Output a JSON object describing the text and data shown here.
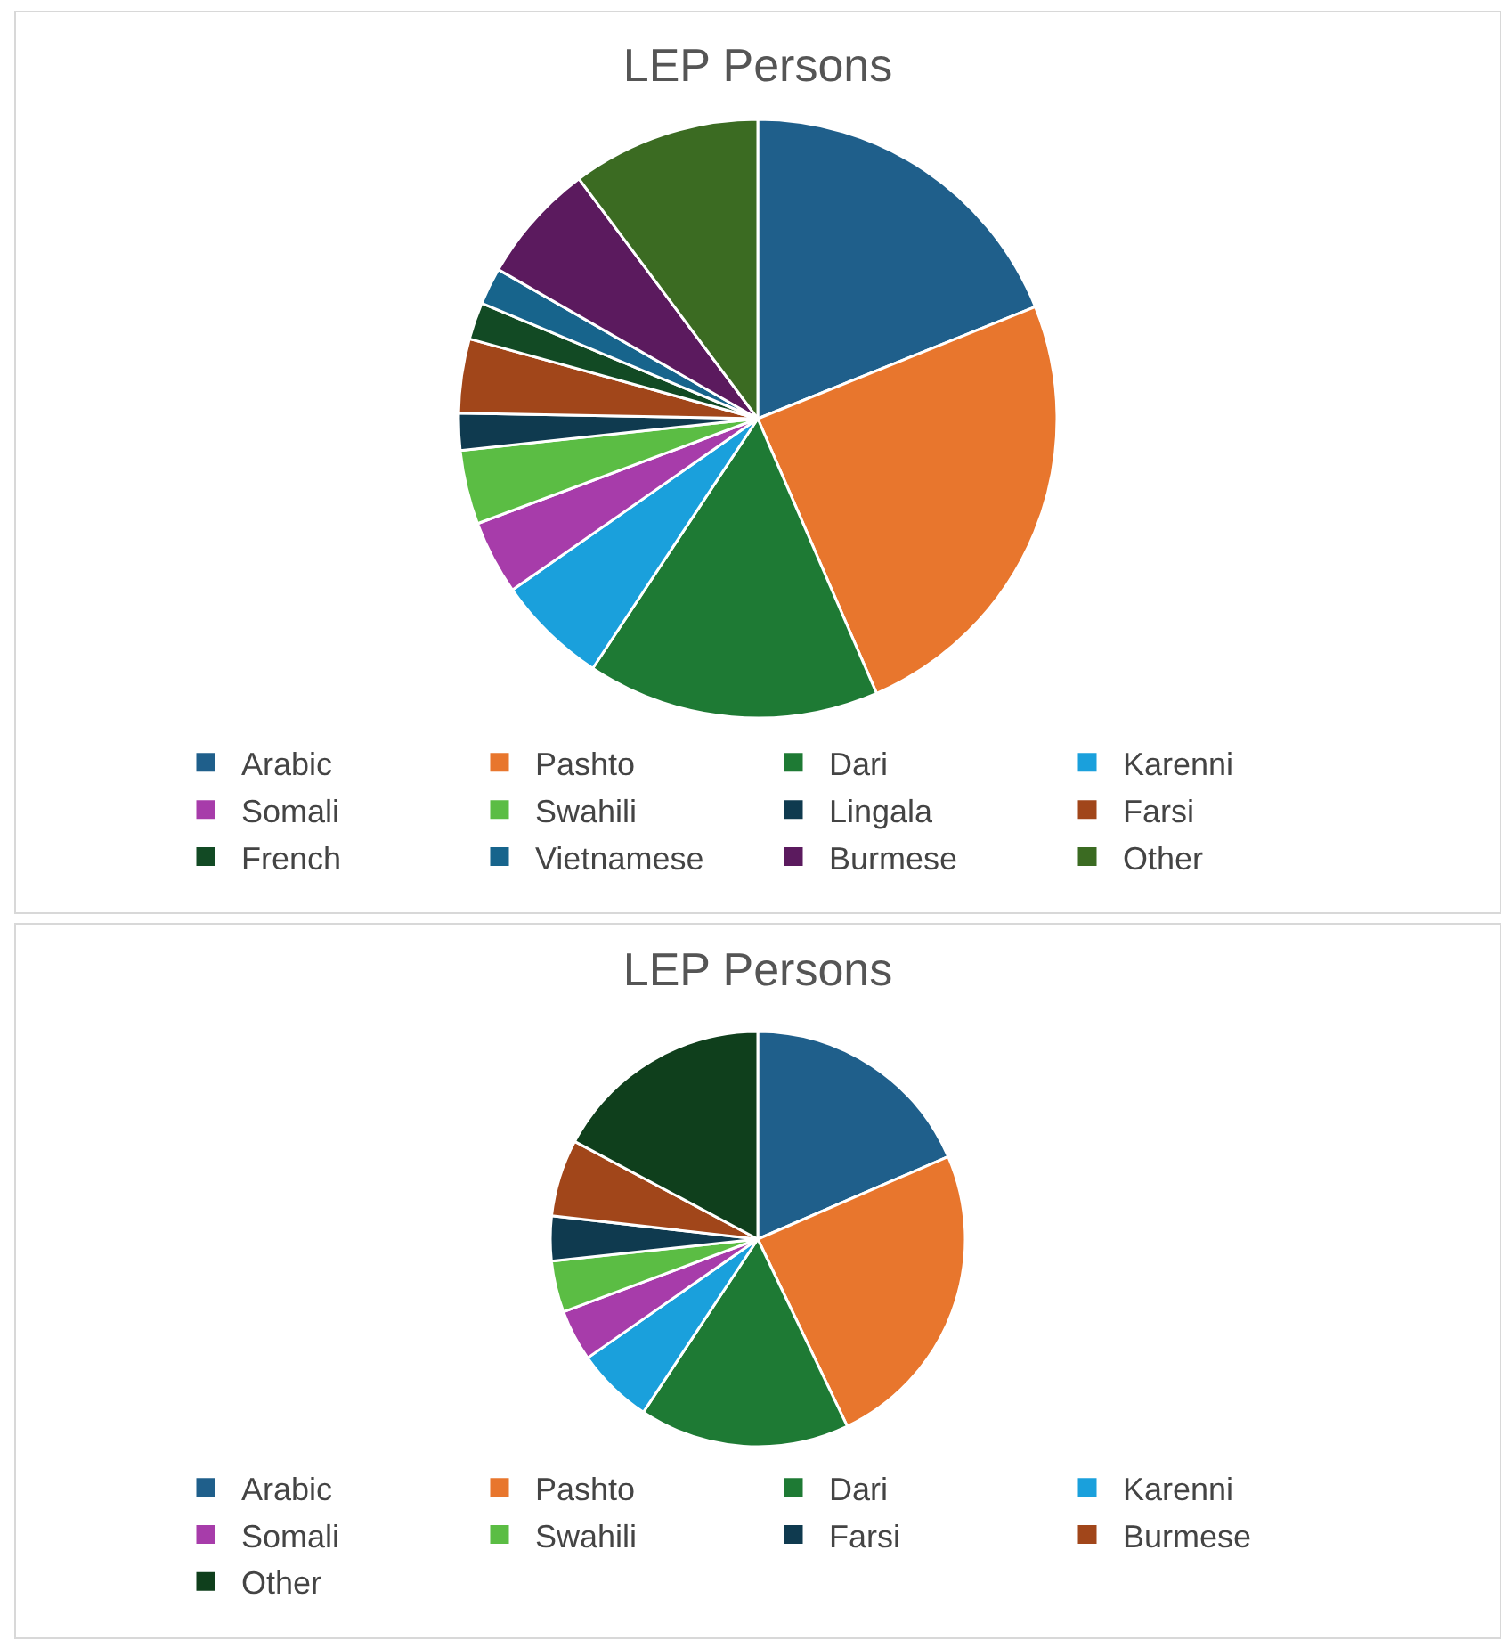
{
  "chart_data": [
    {
      "type": "pie",
      "title": "LEP Persons",
      "categories": [
        "Arabic",
        "Pashto",
        "Dari",
        "Karenni",
        "Somali",
        "Swahili",
        "Lingala",
        "Farsi",
        "French",
        "Vietnamese",
        "Burmese",
        "Other"
      ],
      "values": [
        18.9,
        24.6,
        15.8,
        6,
        4,
        4,
        2,
        4,
        2,
        2,
        6.5,
        10.2
      ],
      "colors": [
        "#1f5f8b",
        "#e8762d",
        "#1e7a34",
        "#1aa0dc",
        "#a73caa",
        "#5bbd44",
        "#0f3a4f",
        "#a1461a",
        "#124a24",
        "#17648c",
        "#5b1a5e",
        "#3b6b22"
      ],
      "legend": "bottom"
    },
    {
      "type": "pie",
      "title": "LEP Persons",
      "categories": [
        "Arabic",
        "Pashto",
        "Dari",
        "Karenni",
        "Somali",
        "Swahili",
        "Farsi",
        "Burmese",
        "Other"
      ],
      "values": [
        18.5,
        24.4,
        16.4,
        6,
        4,
        4,
        3.5,
        6,
        17.2
      ],
      "colors": [
        "#1f5f8b",
        "#e8762d",
        "#1e7a34",
        "#1aa0dc",
        "#a73caa",
        "#5bbd44",
        "#0f3a4f",
        "#a1461a",
        "#0f3f1c"
      ],
      "legend": "bottom"
    }
  ]
}
